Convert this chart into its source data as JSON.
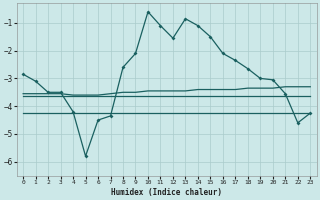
{
  "xlabel": "Humidex (Indice chaleur)",
  "background_color": "#cce8e8",
  "grid_color": "#aacccc",
  "line_color": "#1a6060",
  "xlim": [
    -0.5,
    23.5
  ],
  "ylim": [
    -6.5,
    -0.3
  ],
  "yticks": [
    -6,
    -5,
    -4,
    -3,
    -2,
    -1
  ],
  "xticks": [
    0,
    1,
    2,
    3,
    4,
    5,
    6,
    7,
    8,
    9,
    10,
    11,
    12,
    13,
    14,
    15,
    16,
    17,
    18,
    19,
    20,
    21,
    22,
    23
  ],
  "line1_x": [
    0,
    1,
    2,
    3,
    4,
    5,
    6,
    7,
    8,
    9,
    10,
    11,
    12,
    13,
    14,
    15,
    16,
    17,
    18,
    19,
    20,
    21,
    22,
    23
  ],
  "line1_y": [
    -2.85,
    -3.1,
    -3.5,
    -3.5,
    -4.2,
    -5.8,
    -4.5,
    -4.35,
    -2.6,
    -2.1,
    -0.6,
    -1.1,
    -1.55,
    -0.85,
    -1.1,
    -1.5,
    -2.1,
    -2.35,
    -2.65,
    -3.0,
    -3.05,
    -3.55,
    -4.6,
    -4.25
  ],
  "line2_x": [
    0,
    1,
    2,
    3,
    4,
    5,
    6,
    7,
    8,
    9,
    10,
    11,
    12,
    13,
    14,
    15,
    16,
    17,
    18,
    19,
    20,
    21,
    22,
    23
  ],
  "line2_y": [
    -3.55,
    -3.55,
    -3.55,
    -3.55,
    -3.6,
    -3.6,
    -3.6,
    -3.55,
    -3.5,
    -3.5,
    -3.45,
    -3.45,
    -3.45,
    -3.45,
    -3.4,
    -3.4,
    -3.4,
    -3.4,
    -3.35,
    -3.35,
    -3.35,
    -3.3,
    -3.3,
    -3.3
  ],
  "line3_x": [
    0,
    1,
    2,
    3,
    4,
    5,
    6,
    7,
    8,
    9,
    10,
    11,
    12,
    13,
    14,
    15,
    16,
    17,
    18,
    19,
    20,
    21,
    22,
    23
  ],
  "line3_y": [
    -3.65,
    -3.65,
    -3.65,
    -3.65,
    -3.65,
    -3.65,
    -3.65,
    -3.65,
    -3.65,
    -3.65,
    -3.65,
    -3.65,
    -3.65,
    -3.65,
    -3.65,
    -3.65,
    -3.65,
    -3.65,
    -3.65,
    -3.65,
    -3.65,
    -3.65,
    -3.65,
    -3.65
  ],
  "line4_x": [
    0,
    1,
    2,
    3,
    4,
    5,
    6,
    7,
    8,
    9,
    10,
    11,
    12,
    13,
    14,
    15,
    16,
    17,
    18,
    19,
    20,
    21,
    22,
    23
  ],
  "line4_y": [
    -4.25,
    -4.25,
    -4.25,
    -4.25,
    -4.25,
    -4.25,
    -4.25,
    -4.25,
    -4.25,
    -4.25,
    -4.25,
    -4.25,
    -4.25,
    -4.25,
    -4.25,
    -4.25,
    -4.25,
    -4.25,
    -4.25,
    -4.25,
    -4.25,
    -4.25,
    -4.25,
    -4.25
  ]
}
